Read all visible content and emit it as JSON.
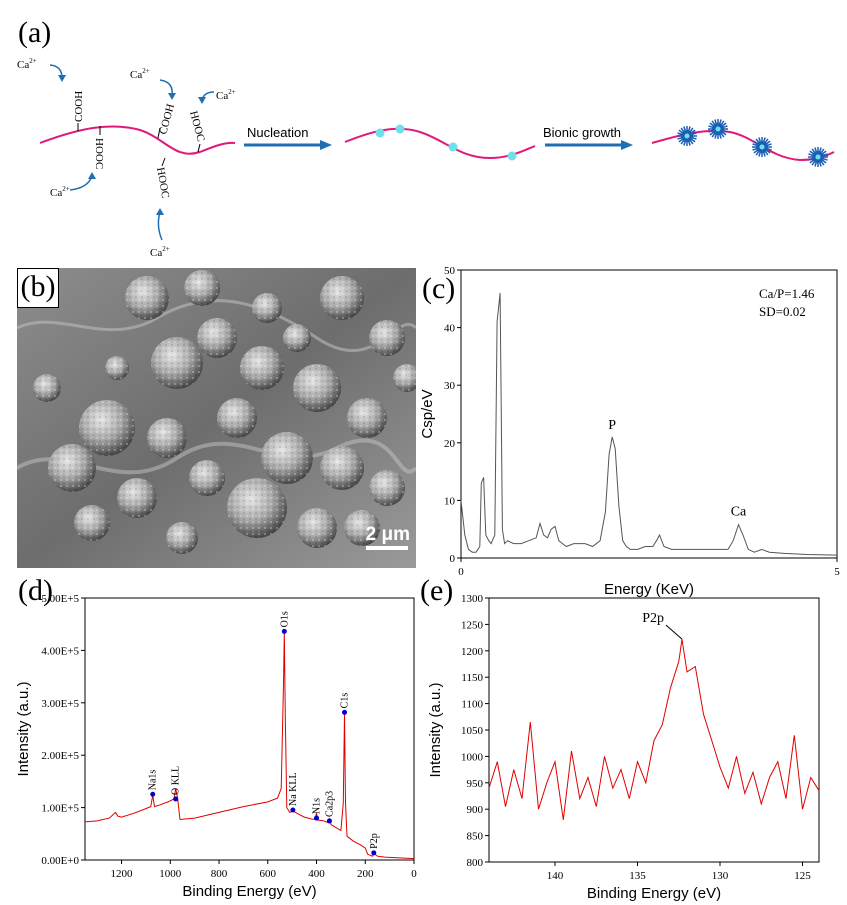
{
  "panel_a": {
    "label": "(a)",
    "ca_label": "Ca",
    "ca_charge": "2+",
    "cooh": "COOH",
    "hooc": "HOOC",
    "step1": "Nucleation",
    "step2": "Bionic growth",
    "colors": {
      "chain": "#e0197a",
      "arrow": "#1f6fb2",
      "nucleus": "#6fe0e8",
      "crystal": "#1a5fb4"
    }
  },
  "panel_b": {
    "label": "(b)",
    "scale_text": "2 μm"
  },
  "chart_data": [
    {
      "id": "c",
      "label": "(c)",
      "type": "line",
      "xlabel": "Energy (KeV)",
      "ylabel": "Csp/eV",
      "xlim": [
        0,
        5
      ],
      "ylim": [
        0,
        50
      ],
      "xticks": [
        "0",
        "5"
      ],
      "yticks": [
        "0",
        "10",
        "20",
        "30",
        "40",
        "50"
      ],
      "annotations": [
        "Ca/P=1.46",
        "SD=0.02"
      ],
      "peak_labels": [
        {
          "text": "P",
          "x": 2.01,
          "y": 21
        },
        {
          "text": "Ca",
          "x": 3.69,
          "y": 6
        }
      ],
      "x": [
        0,
        0.05,
        0.1,
        0.15,
        0.2,
        0.25,
        0.27,
        0.3,
        0.33,
        0.37,
        0.4,
        0.45,
        0.48,
        0.52,
        0.55,
        0.58,
        0.62,
        0.7,
        0.8,
        0.9,
        1.0,
        1.05,
        1.1,
        1.15,
        1.2,
        1.25,
        1.3,
        1.35,
        1.4,
        1.5,
        1.58,
        1.65,
        1.75,
        1.85,
        1.92,
        1.97,
        2.01,
        2.05,
        2.1,
        2.15,
        2.2,
        2.25,
        2.35,
        2.45,
        2.55,
        2.6,
        2.64,
        2.7,
        2.8,
        3.0,
        3.2,
        3.4,
        3.55,
        3.62,
        3.69,
        3.75,
        3.82,
        3.9,
        4.0,
        4.1,
        4.3,
        4.6,
        5.0
      ],
      "y": [
        10,
        4,
        1.5,
        1,
        1,
        2,
        13,
        14,
        4,
        3,
        2.5,
        4,
        41,
        46,
        5,
        2.5,
        3,
        2.5,
        2.5,
        3,
        3.5,
        6,
        4,
        3.5,
        5,
        5.5,
        3,
        2.5,
        2,
        2.5,
        2.5,
        2.5,
        2,
        3,
        8,
        18,
        21,
        19,
        9,
        3,
        2,
        1.5,
        1.5,
        2,
        2,
        3,
        4,
        2,
        1.5,
        1.5,
        1.5,
        1.5,
        1.5,
        3,
        5.8,
        4,
        1.5,
        1,
        1.5,
        1,
        0.8,
        0.6,
        0.5
      ]
    },
    {
      "id": "d",
      "label": "(d)",
      "type": "line",
      "xlabel": "Binding Energy (eV)",
      "ylabel": "Intensity (a.u.)",
      "xlim": [
        1350,
        0
      ],
      "ylim": [
        0,
        550000
      ],
      "xticks": [
        "1200",
        "1000",
        "800",
        "600",
        "400",
        "200",
        "0"
      ],
      "yticks": [
        "0.00E+0",
        "1.00E+5",
        "2.00E+5",
        "3.00E+5",
        "4.00E+5",
        "5.00E+5"
      ],
      "color": "#e00000",
      "peak_labels": [
        {
          "text": "Na1s",
          "x": 1072,
          "y": 138000
        },
        {
          "text": "O KLL",
          "x": 978,
          "y": 128000
        },
        {
          "text": "O1s",
          "x": 532,
          "y": 480000
        },
        {
          "text": "Na KLL",
          "x": 497,
          "y": 105000
        },
        {
          "text": "N1s",
          "x": 400,
          "y": 88000
        },
        {
          "text": "Ca2p3",
          "x": 347,
          "y": 82000
        },
        {
          "text": "C1s",
          "x": 285,
          "y": 310000
        },
        {
          "text": "P2p",
          "x": 165,
          "y": 15000
        }
      ],
      "x": [
        1350,
        1300,
        1250,
        1225,
        1215,
        1200,
        1150,
        1100,
        1080,
        1072,
        1065,
        1040,
        1010,
        985,
        978,
        970,
        960,
        900,
        800,
        700,
        600,
        560,
        545,
        535,
        532,
        528,
        522,
        510,
        497,
        480,
        450,
        420,
        405,
        400,
        395,
        370,
        350,
        347,
        340,
        320,
        300,
        290,
        285,
        281,
        275,
        250,
        220,
        200,
        190,
        170,
        165,
        150,
        120,
        80,
        40,
        0
      ],
      "y": [
        80000,
        82000,
        88000,
        100000,
        92000,
        90000,
        98000,
        108000,
        112000,
        136000,
        112000,
        116000,
        122000,
        128000,
        150000,
        130000,
        85000,
        88000,
        100000,
        112000,
        122000,
        130000,
        150000,
        380000,
        480000,
        300000,
        110000,
        100000,
        103000,
        98000,
        90000,
        86000,
        85000,
        100000,
        84000,
        82000,
        78000,
        88000,
        74000,
        68000,
        62000,
        120000,
        310000,
        120000,
        50000,
        40000,
        32000,
        25000,
        12000,
        8000,
        14000,
        8000,
        6000,
        5000,
        4000,
        3000
      ]
    },
    {
      "id": "e",
      "label": "(e)",
      "type": "line",
      "xlabel": "Binding Energy (eV)",
      "ylabel": "Intensity (a.u.)",
      "xlim": [
        144,
        124
      ],
      "ylim": [
        800,
        1300
      ],
      "xticks": [
        "140",
        "135",
        "130",
        "125"
      ],
      "yticks": [
        "800",
        "850",
        "900",
        "950",
        "1000",
        "1050",
        "1100",
        "1150",
        "1200",
        "1250",
        "1300"
      ],
      "color": "#e00000",
      "peak_labels": [
        {
          "text": "P2p",
          "x": 132.3,
          "y": 1222
        }
      ],
      "x": [
        144,
        143.5,
        143,
        142.5,
        142,
        141.5,
        141,
        140.5,
        140,
        139.5,
        139,
        138.5,
        138,
        137.5,
        137,
        136.5,
        136,
        135.5,
        135,
        134.5,
        134,
        133.5,
        133,
        132.5,
        132.3,
        132,
        131.5,
        131,
        130.5,
        130,
        129.5,
        129,
        128.5,
        128,
        127.5,
        127,
        126.5,
        126,
        125.5,
        125,
        124.5,
        124
      ],
      "y": [
        940,
        990,
        905,
        975,
        920,
        1065,
        900,
        950,
        990,
        880,
        1010,
        920,
        960,
        905,
        1000,
        940,
        975,
        920,
        990,
        950,
        1030,
        1060,
        1130,
        1180,
        1222,
        1160,
        1170,
        1080,
        1030,
        980,
        940,
        1000,
        930,
        970,
        910,
        960,
        990,
        920,
        1040,
        900,
        960,
        935
      ]
    }
  ]
}
